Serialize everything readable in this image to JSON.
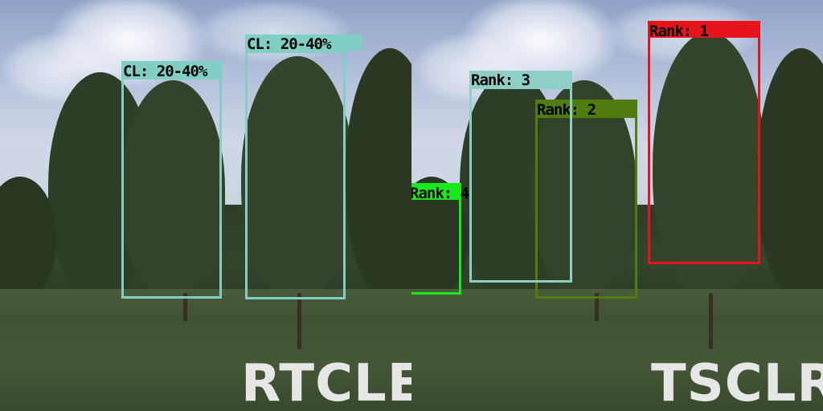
{
  "panels": {
    "left": {
      "caption": "RTCLE",
      "detections": [
        {
          "label": "CL: 20-40%",
          "color": "#7fcfc4"
        },
        {
          "label": "CL: 20-40%",
          "color": "#7fcfc4"
        }
      ]
    },
    "right": {
      "caption": "TSCLR",
      "detections": [
        {
          "label": "Rank: 1",
          "color": "#e8141c"
        },
        {
          "label": "Rank: 2",
          "color": "#4f7d10"
        },
        {
          "label": "Rank: 3",
          "color": "#8ecfc6"
        },
        {
          "label": "Rank: 4",
          "color": "#19e81b"
        }
      ]
    }
  }
}
